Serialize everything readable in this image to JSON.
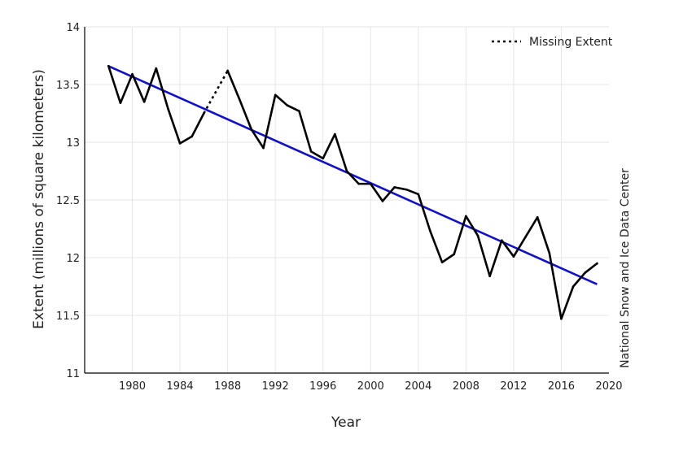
{
  "chart_data": {
    "type": "line",
    "title": "",
    "xlabel": "Year",
    "ylabel": "Extent (millions of square kilometers)",
    "xlim": [
      1976,
      2020
    ],
    "ylim": [
      11,
      14
    ],
    "x_ticks": [
      1980,
      1984,
      1988,
      1992,
      1996,
      2000,
      2004,
      2008,
      2012,
      2016,
      2020
    ],
    "y_ticks": [
      11,
      11.5,
      12,
      12.5,
      13,
      13.5,
      14
    ],
    "y_tick_labels": [
      "11",
      "11.5",
      "12",
      "12.5",
      "13",
      "13.5",
      "14"
    ],
    "grid": true,
    "legend": {
      "position": "top-right",
      "entries": [
        {
          "label": "Missing Extent",
          "style": "dotted"
        }
      ]
    },
    "credit": "National Snow and Ice Data Center",
    "series": [
      {
        "name": "Extent",
        "color": "#000000",
        "x": [
          1978,
          1979,
          1980,
          1981,
          1982,
          1983,
          1984,
          1985,
          1986
        ],
        "values": [
          13.66,
          13.34,
          13.59,
          13.35,
          13.64,
          13.29,
          12.99,
          13.05,
          13.25
        ]
      },
      {
        "name": "Extent",
        "color": "#000000",
        "x": [
          1988,
          1989,
          1990,
          1991,
          1992,
          1993,
          1994,
          1995,
          1996,
          1997,
          1998,
          1999,
          2000,
          2001,
          2002,
          2003,
          2004,
          2005,
          2006,
          2007,
          2008,
          2009,
          2010,
          2011,
          2012,
          2013,
          2014,
          2015,
          2016,
          2017,
          2018,
          2019
        ],
        "values": [
          13.62,
          13.37,
          13.11,
          12.95,
          13.41,
          13.32,
          13.27,
          12.92,
          12.86,
          13.07,
          12.75,
          12.64,
          12.64,
          12.49,
          12.61,
          12.59,
          12.55,
          12.23,
          11.96,
          12.03,
          12.36,
          12.19,
          11.84,
          12.15,
          12.01,
          12.18,
          12.35,
          12.04,
          11.47,
          11.75,
          11.87,
          11.95
        ]
      }
    ],
    "missing_extent": {
      "x": [
        1986,
        1988
      ],
      "values": [
        13.25,
        13.62
      ]
    },
    "trend": {
      "name": "Trend",
      "color": "#1010d0",
      "x": [
        1978,
        2019
      ],
      "values": [
        13.66,
        11.77
      ]
    }
  }
}
